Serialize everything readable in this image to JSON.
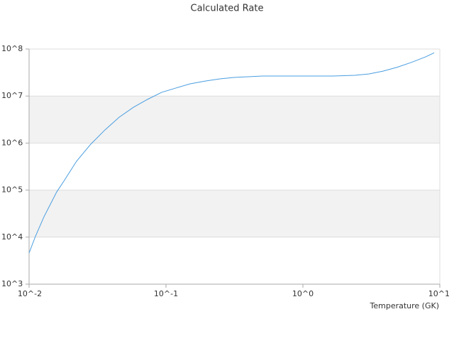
{
  "chart_data": {
    "type": "line",
    "title": "Calculated Rate",
    "x_label": "Temperature (GK)",
    "xscale": "log",
    "yscale": "log",
    "grid": true,
    "xlim": [
      0.01,
      10
    ],
    "ylim": [
      1000,
      100000000
    ],
    "xticks": [
      {
        "value": 0.01,
        "label": "10^-2"
      },
      {
        "value": 0.1,
        "label": "10^-1"
      },
      {
        "value": 1,
        "label": "10^0"
      },
      {
        "value": 10,
        "label": "10^1"
      }
    ],
    "yticks": [
      {
        "value": 1000,
        "label": "10^3"
      },
      {
        "value": 10000,
        "label": "10^4"
      },
      {
        "value": 100000,
        "label": "10^5"
      },
      {
        "value": 1000000,
        "label": "10^6"
      },
      {
        "value": 10000000,
        "label": "10^7"
      },
      {
        "value": 100000000,
        "label": "10^8"
      }
    ],
    "x": [
      0.01,
      0.0111,
      0.01285,
      0.0159,
      0.01794,
      0.0222,
      0.0282,
      0.0358,
      0.0455,
      0.0578,
      0.0733,
      0.0931,
      0.118,
      0.15,
      0.195,
      0.248,
      0.314,
      0.507,
      1.04,
      1.67,
      2.39,
      3.03,
      3.85,
      4.89,
      6.2,
      7.87,
      9.1
    ],
    "series": [
      {
        "color": "#4a9ee0",
        "values": [
          4600,
          10200,
          27200,
          91000,
          155000,
          410000,
          946000,
          1900000,
          3550000,
          5760000,
          8500000,
          12000000,
          14800000,
          18200000,
          20900000,
          23200000,
          24900000,
          26700000,
          26700000,
          26700000,
          27600000,
          29500000,
          33900000,
          41000000,
          52000000,
          68000000,
          83000000
        ]
      }
    ]
  }
}
